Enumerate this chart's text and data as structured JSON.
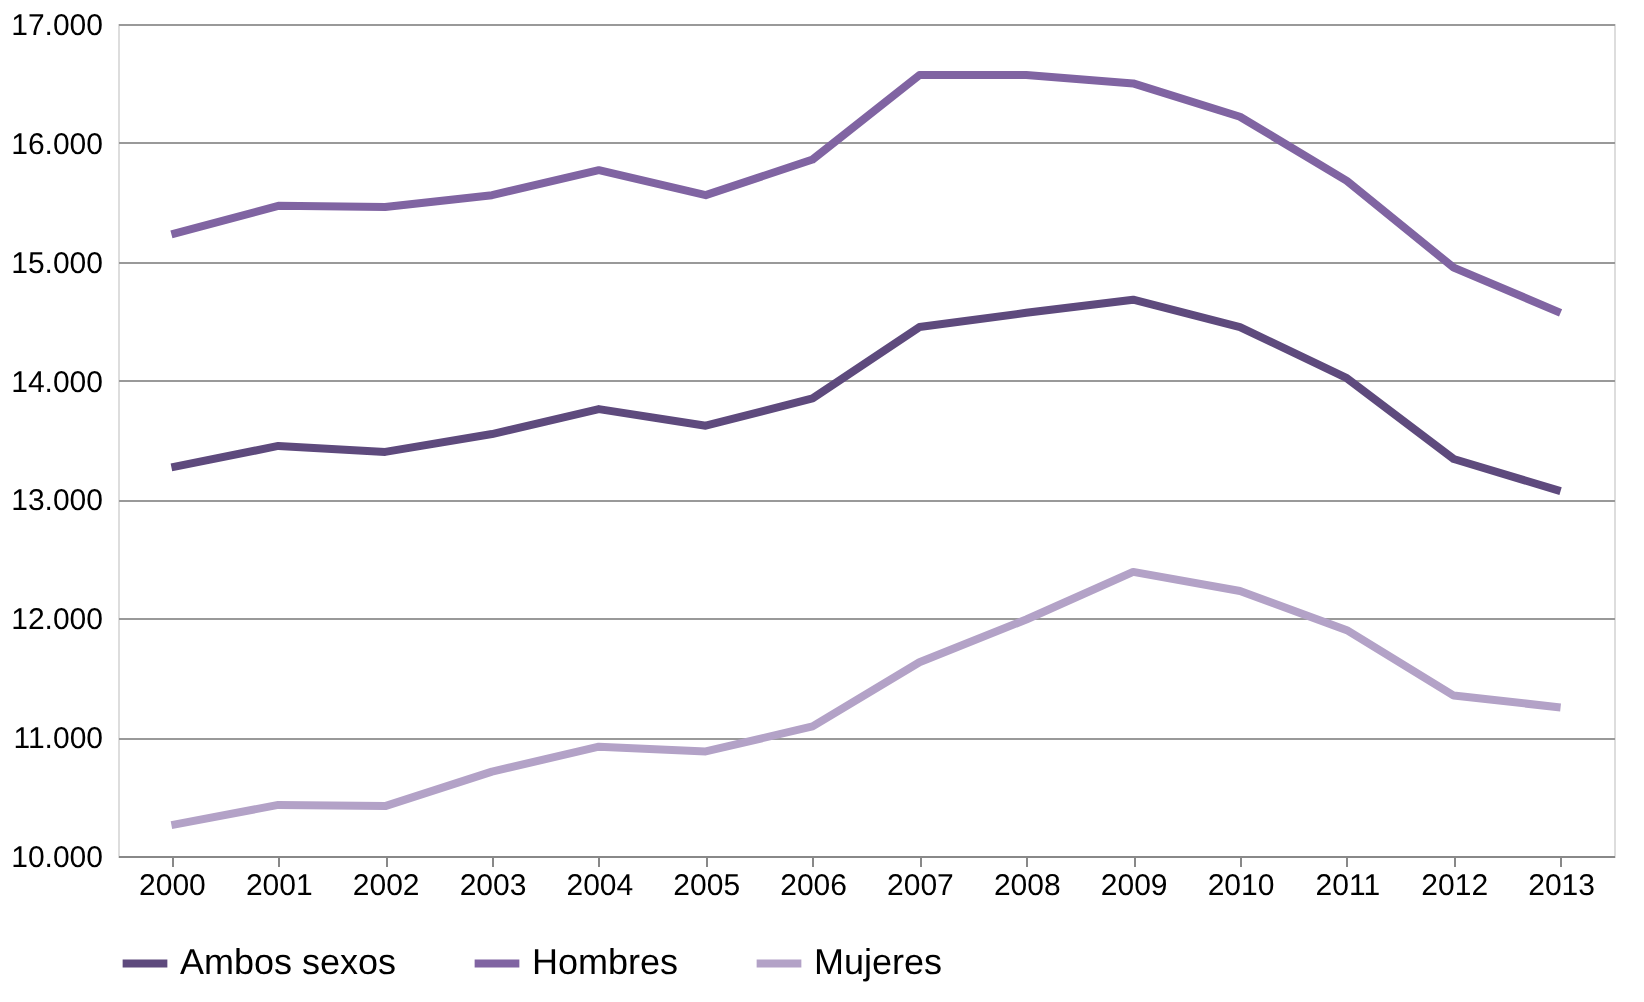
{
  "chart_data": {
    "type": "line",
    "categories": [
      "2000",
      "2001",
      "2002",
      "2003",
      "2004",
      "2005",
      "2006",
      "2007",
      "2008",
      "2009",
      "2010",
      "2011",
      "2012",
      "2013"
    ],
    "series": [
      {
        "name": "Ambos sexos",
        "color": "#5e4a7d",
        "values": [
          13.27,
          13.45,
          13.4,
          13.55,
          13.76,
          13.62,
          13.85,
          14.45,
          14.57,
          14.68,
          14.45,
          14.02,
          13.34,
          13.07
        ]
      },
      {
        "name": "Hombres",
        "color": "#8064a2",
        "values": [
          15.23,
          15.47,
          15.46,
          15.56,
          15.77,
          15.56,
          15.86,
          16.57,
          16.57,
          16.5,
          16.22,
          15.68,
          14.95,
          14.57
        ]
      },
      {
        "name": "Mujeres",
        "color": "#b3a2c7",
        "values": [
          10.26,
          10.43,
          10.42,
          10.71,
          10.92,
          10.88,
          11.09,
          11.63,
          11.99,
          12.39,
          12.23,
          11.9,
          11.35,
          11.25
        ]
      }
    ],
    "ylim": [
      10,
      17
    ],
    "yticks": [
      {
        "value": 10,
        "label": "10.000"
      },
      {
        "value": 11,
        "label": "11.000"
      },
      {
        "value": 12,
        "label": "12.000"
      },
      {
        "value": 13,
        "label": "13.000"
      },
      {
        "value": 14,
        "label": "14.000"
      },
      {
        "value": 15,
        "label": "15.000"
      },
      {
        "value": 16,
        "label": "16.000"
      },
      {
        "value": 17,
        "label": "17.000"
      }
    ],
    "grid": "y",
    "legend": "bottom",
    "marker": "none",
    "line_style": "solid"
  }
}
